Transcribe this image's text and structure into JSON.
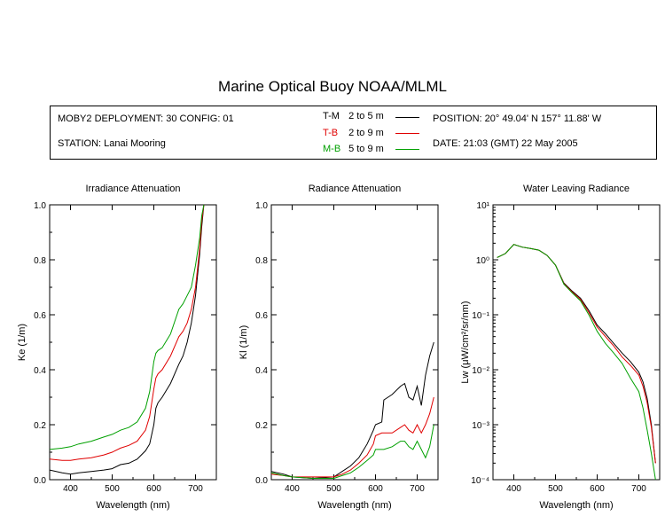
{
  "title": "Marine Optical Buoy NOAA/MLML",
  "info": {
    "deployment": "MOBY2 DEPLOYMENT: 30 CONFIG: 01",
    "station": "STATION: Lanai Mooring",
    "position": "POSITION: 20° 49.04' N   157° 11.88' W",
    "date": "DATE: 21:03 (GMT) 22 May 2005"
  },
  "legend": [
    {
      "code": "T-M",
      "range": "2 to 5  m",
      "color": "#000000"
    },
    {
      "code": "T-B",
      "range": "2 to 9  m",
      "color": "#e00000"
    },
    {
      "code": "M-B",
      "range": "5 to 9  m",
      "color": "#00a000"
    }
  ],
  "chart_data": [
    {
      "type": "line",
      "title": "Irradiance Attenuation",
      "xlabel": "Wavelength (nm)",
      "ylabel": "Ke  (1/m)",
      "xlim": [
        350,
        750
      ],
      "ylim": [
        0,
        1
      ],
      "xticks": [
        400,
        500,
        600,
        700
      ],
      "yticks": [
        0.0,
        0.2,
        0.4,
        0.6,
        0.8,
        1.0
      ],
      "yticklabels": [
        "0.0",
        "0.2",
        "0.4",
        "0.6",
        "0.8",
        "1.0"
      ],
      "series": [
        {
          "name": "T-M",
          "color": "#000000",
          "x": [
            350,
            380,
            400,
            420,
            450,
            480,
            500,
            520,
            540,
            560,
            580,
            590,
            600,
            605,
            610,
            620,
            640,
            660,
            670,
            680,
            690,
            700,
            710,
            715,
            720
          ],
          "y": [
            0.035,
            0.025,
            0.02,
            0.025,
            0.03,
            0.035,
            0.04,
            0.055,
            0.06,
            0.075,
            0.105,
            0.13,
            0.2,
            0.26,
            0.28,
            0.3,
            0.35,
            0.42,
            0.45,
            0.5,
            0.57,
            0.67,
            0.82,
            0.92,
            1.0
          ]
        },
        {
          "name": "T-B",
          "color": "#e00000",
          "x": [
            350,
            380,
            400,
            420,
            450,
            480,
            500,
            520,
            540,
            560,
            580,
            590,
            600,
            605,
            610,
            620,
            640,
            660,
            670,
            680,
            690,
            700,
            710,
            715,
            720
          ],
          "y": [
            0.075,
            0.07,
            0.07,
            0.075,
            0.08,
            0.09,
            0.1,
            0.115,
            0.125,
            0.14,
            0.18,
            0.23,
            0.33,
            0.37,
            0.385,
            0.4,
            0.45,
            0.52,
            0.54,
            0.57,
            0.62,
            0.7,
            0.84,
            0.94,
            1.0
          ]
        },
        {
          "name": "M-B",
          "color": "#00a000",
          "x": [
            350,
            380,
            400,
            420,
            450,
            480,
            500,
            520,
            540,
            560,
            580,
            590,
            600,
            605,
            610,
            620,
            640,
            660,
            670,
            680,
            690,
            700,
            710,
            715,
            720
          ],
          "y": [
            0.11,
            0.115,
            0.12,
            0.13,
            0.14,
            0.155,
            0.165,
            0.18,
            0.19,
            0.21,
            0.26,
            0.32,
            0.43,
            0.46,
            0.47,
            0.48,
            0.53,
            0.62,
            0.64,
            0.67,
            0.7,
            0.78,
            0.88,
            0.96,
            1.0
          ]
        }
      ]
    },
    {
      "type": "line",
      "title": "Radiance Attenuation",
      "xlabel": "Wavelength (nm)",
      "ylabel": "Kl  (1/m)",
      "xlim": [
        350,
        750
      ],
      "ylim": [
        0,
        1
      ],
      "xticks": [
        400,
        500,
        600,
        700
      ],
      "yticks": [
        0.0,
        0.2,
        0.4,
        0.6,
        0.8,
        1.0
      ],
      "yticklabels": [
        "0.0",
        "0.2",
        "0.4",
        "0.6",
        "0.8",
        "1.0"
      ],
      "series": [
        {
          "name": "T-M",
          "color": "#000000",
          "x": [
            350,
            380,
            400,
            450,
            500,
            520,
            540,
            560,
            580,
            595,
            600,
            615,
            620,
            640,
            660,
            670,
            680,
            690,
            700,
            710,
            720,
            730,
            740
          ],
          "y": [
            0.03,
            0.02,
            0.01,
            0.005,
            0.01,
            0.03,
            0.05,
            0.08,
            0.13,
            0.18,
            0.2,
            0.21,
            0.29,
            0.31,
            0.34,
            0.35,
            0.3,
            0.29,
            0.34,
            0.27,
            0.38,
            0.45,
            0.5
          ]
        },
        {
          "name": "T-B",
          "color": "#e00000",
          "x": [
            350,
            380,
            400,
            450,
            500,
            520,
            540,
            560,
            580,
            595,
            600,
            615,
            620,
            640,
            660,
            670,
            680,
            690,
            700,
            710,
            720,
            730,
            740
          ],
          "y": [
            0.02,
            0.015,
            0.01,
            0.01,
            0.01,
            0.02,
            0.035,
            0.06,
            0.09,
            0.13,
            0.16,
            0.17,
            0.17,
            0.17,
            0.19,
            0.2,
            0.18,
            0.17,
            0.2,
            0.17,
            0.2,
            0.24,
            0.3
          ]
        },
        {
          "name": "M-B",
          "color": "#00a000",
          "x": [
            350,
            380,
            400,
            450,
            500,
            520,
            540,
            560,
            580,
            595,
            600,
            615,
            620,
            640,
            660,
            670,
            680,
            690,
            700,
            710,
            720,
            730,
            740
          ],
          "y": [
            0.025,
            0.015,
            0.01,
            0.005,
            0.005,
            0.015,
            0.025,
            0.045,
            0.07,
            0.09,
            0.11,
            0.11,
            0.11,
            0.12,
            0.14,
            0.14,
            0.12,
            0.11,
            0.14,
            0.11,
            0.08,
            0.12,
            0.2
          ]
        }
      ]
    },
    {
      "type": "line",
      "scale": "log",
      "title": "Water Leaving Radiance",
      "xlabel": "Wavelength (nm)",
      "ylabel": "Lw  (μW/cm²/sr/nm)",
      "xlim": [
        350,
        750
      ],
      "ylim": [
        0.0001,
        10
      ],
      "xticks": [
        400,
        500,
        600,
        700
      ],
      "yticks": [
        0.0001,
        0.001,
        0.01,
        0.1,
        1,
        10
      ],
      "yticklabels": [
        "10⁻⁴",
        "10⁻³",
        "10⁻²",
        "10⁻¹",
        "10⁰",
        "10¹"
      ],
      "series": [
        {
          "name": "T-M",
          "color": "#000000",
          "x": [
            360,
            380,
            400,
            420,
            440,
            460,
            480,
            500,
            520,
            540,
            560,
            580,
            600,
            620,
            640,
            660,
            680,
            700,
            710,
            720,
            730,
            740
          ],
          "y": [
            1.1,
            1.3,
            1.9,
            1.7,
            1.6,
            1.5,
            1.2,
            0.8,
            0.38,
            0.27,
            0.2,
            0.12,
            0.065,
            0.045,
            0.03,
            0.02,
            0.014,
            0.009,
            0.006,
            0.003,
            0.001,
            0.0002
          ]
        },
        {
          "name": "T-B",
          "color": "#e00000",
          "x": [
            360,
            380,
            400,
            420,
            440,
            460,
            480,
            500,
            520,
            540,
            560,
            580,
            600,
            620,
            640,
            660,
            680,
            700,
            710,
            720,
            730,
            740
          ],
          "y": [
            1.1,
            1.3,
            1.9,
            1.7,
            1.6,
            1.5,
            1.2,
            0.8,
            0.37,
            0.26,
            0.19,
            0.11,
            0.06,
            0.04,
            0.027,
            0.017,
            0.012,
            0.008,
            0.005,
            0.0025,
            0.0009,
            0.0002
          ]
        },
        {
          "name": "M-B",
          "color": "#00a000",
          "x": [
            360,
            380,
            400,
            420,
            440,
            460,
            480,
            500,
            520,
            540,
            560,
            580,
            600,
            620,
            640,
            660,
            680,
            700,
            710,
            720,
            730,
            740
          ],
          "y": [
            1.1,
            1.3,
            1.9,
            1.7,
            1.6,
            1.5,
            1.2,
            0.8,
            0.36,
            0.25,
            0.18,
            0.1,
            0.05,
            0.03,
            0.02,
            0.013,
            0.007,
            0.004,
            0.002,
            0.0008,
            0.0003,
            0.0001
          ]
        }
      ]
    }
  ]
}
